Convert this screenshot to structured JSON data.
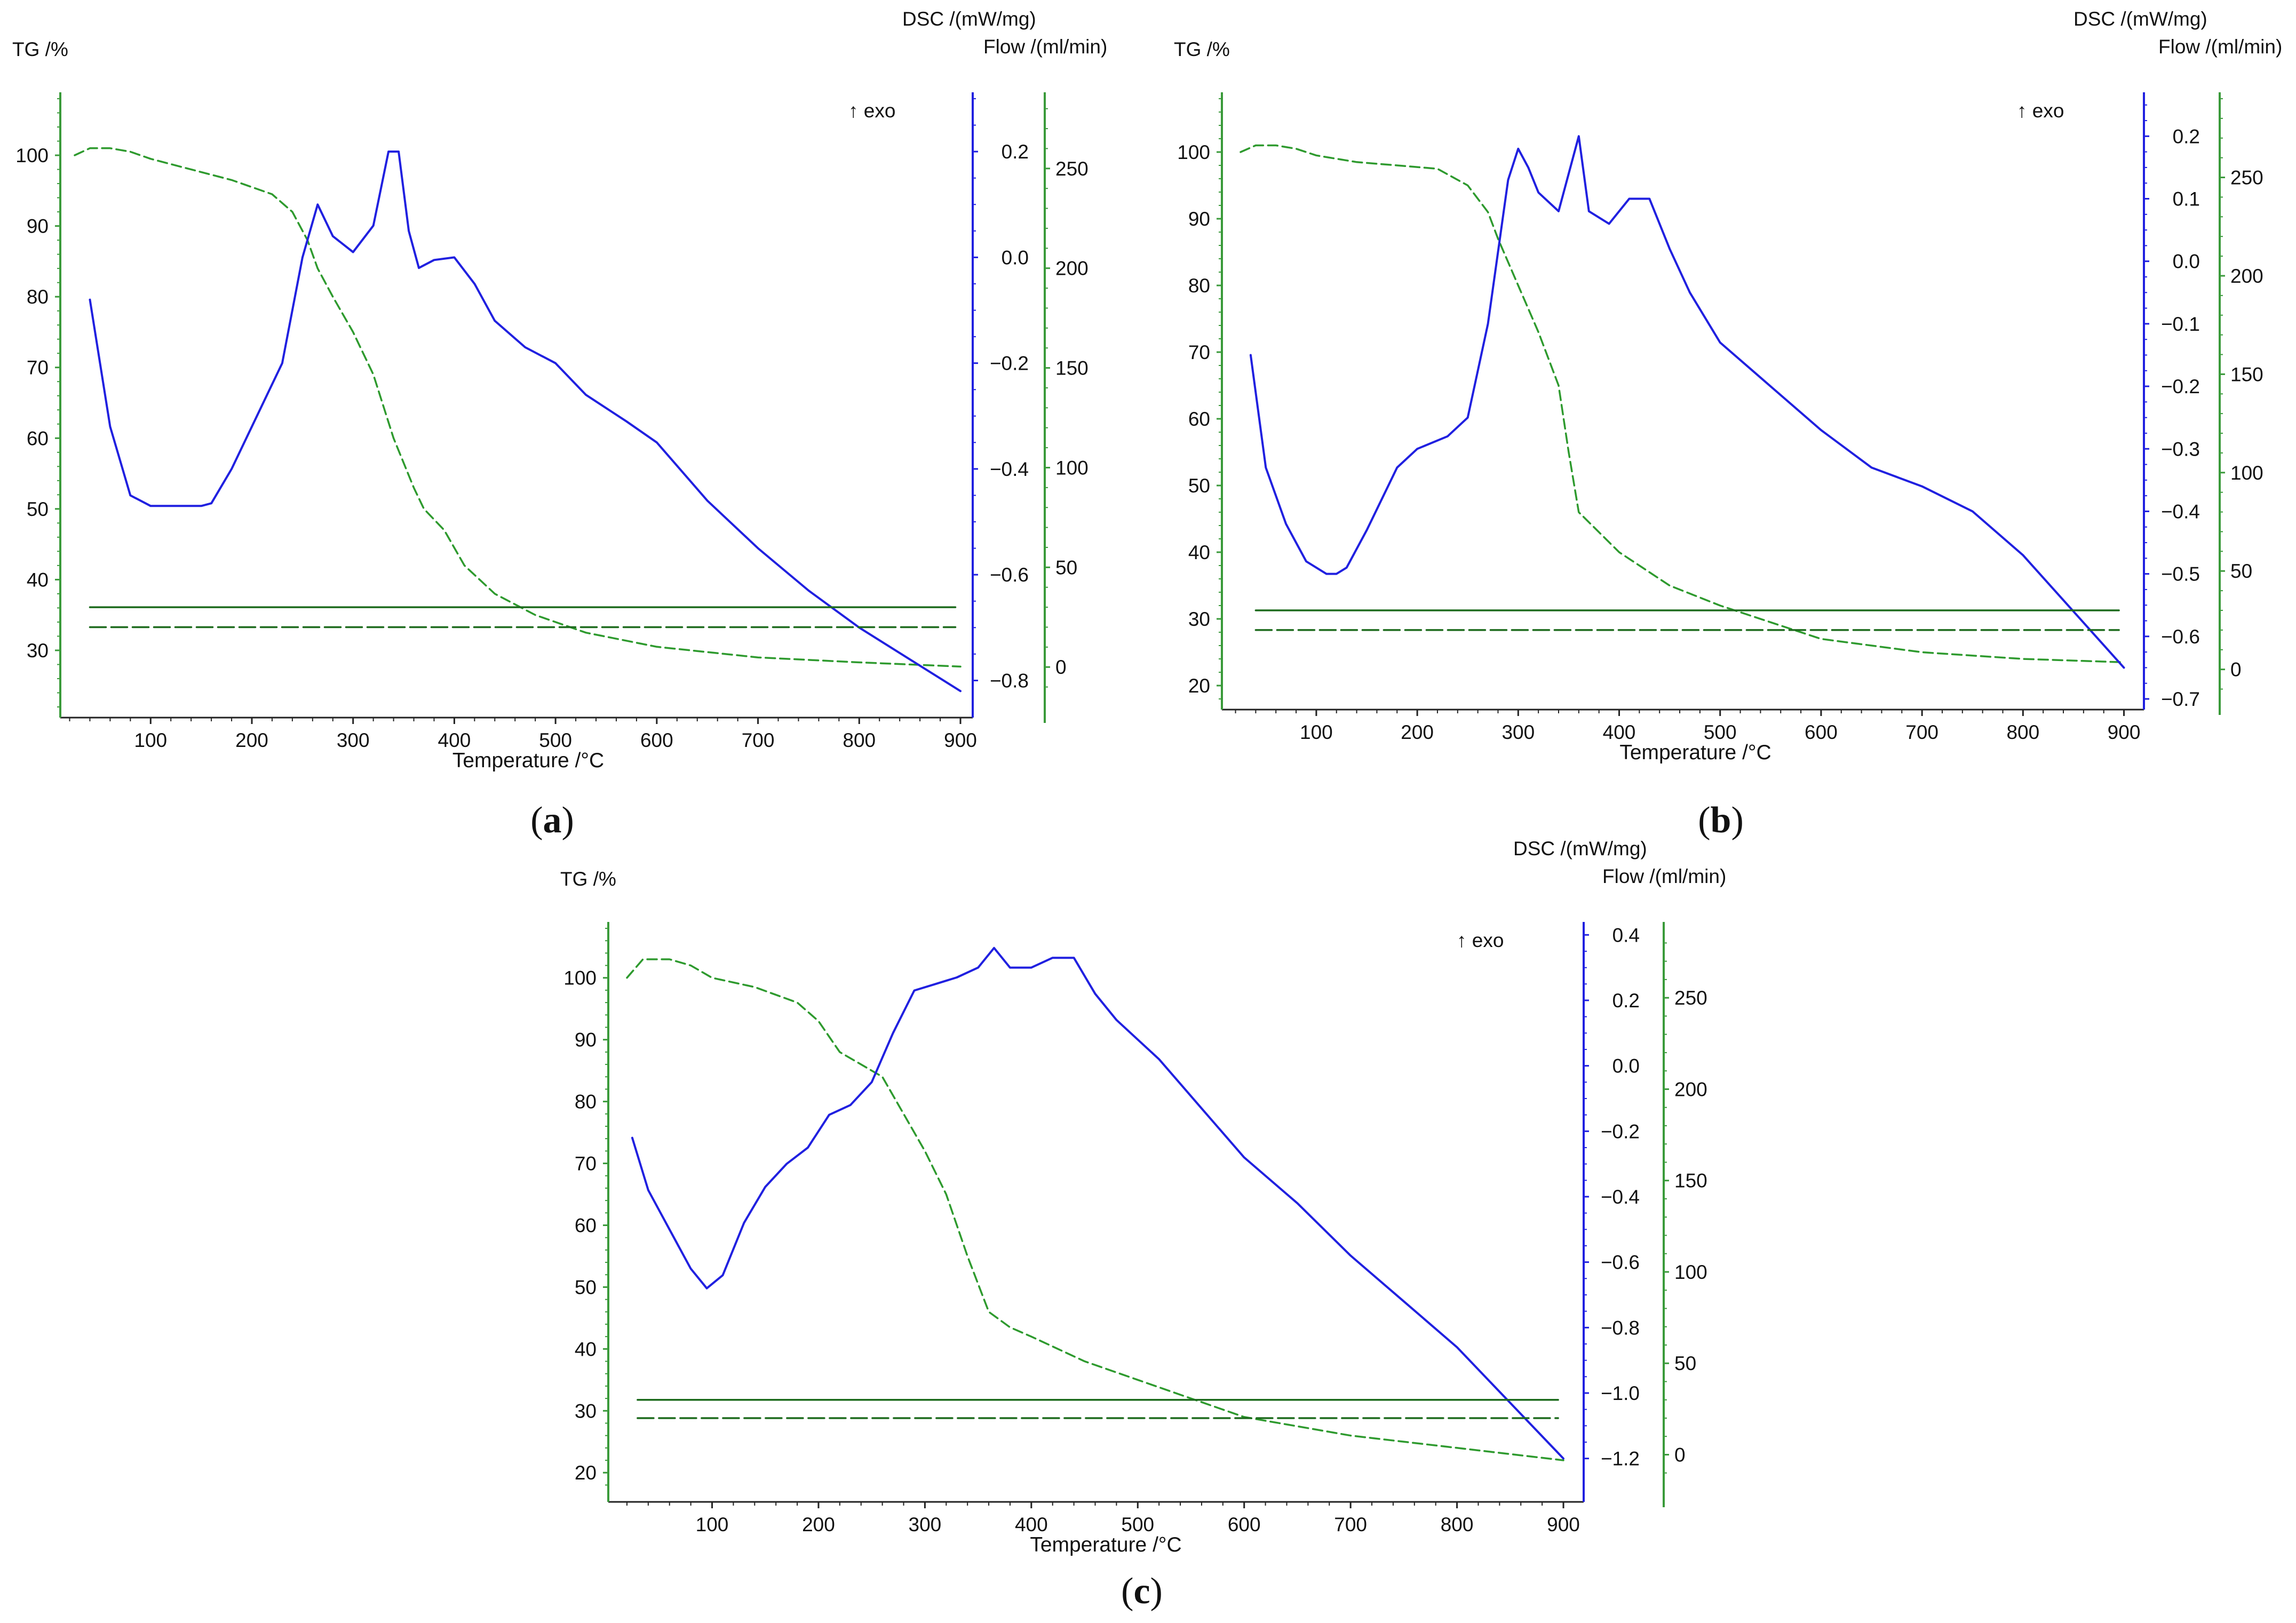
{
  "figure": {
    "colors": {
      "tg": "#2e9a2e",
      "dsc": "#2020e0",
      "flow": "#1d6b1d",
      "axis_tg": "#3a9a3a",
      "axis_dsc": "#2020e0",
      "axis_flow": "#3a9a3a",
      "text": "#111111"
    }
  },
  "chart_data": [
    {
      "id": "a",
      "type": "line",
      "panel_label": {
        "open": "(",
        "letter": "a",
        "close": ")"
      },
      "xlabel": "Temperature /°C",
      "xlim": [
        25,
        900
      ],
      "xticks": [
        100,
        200,
        300,
        400,
        500,
        600,
        700,
        800,
        900
      ],
      "tg_axis": {
        "label": "TG /%",
        "ylim": [
          22,
          108
        ],
        "ticks": [
          30,
          40,
          50,
          60,
          70,
          80,
          90,
          100
        ]
      },
      "dsc_axis": {
        "label": "DSC /(mW/mg)",
        "ylim": [
          -0.85,
          0.3
        ],
        "ticks": [
          -0.8,
          -0.6,
          -0.4,
          -0.2,
          0.0,
          0.2
        ],
        "tick_labels": [
          "−0.8",
          "−0.6",
          "−0.4",
          "−0.2",
          "0.0",
          "0.2"
        ]
      },
      "flow_axis": {
        "label": "Flow /(ml/min)",
        "ylim": [
          -20,
          285
        ],
        "ticks": [
          0,
          50,
          100,
          150,
          200,
          250
        ]
      },
      "exo_label": "↑ exo",
      "series": [
        {
          "name": "TG",
          "axis": "tg",
          "style": "dashed",
          "x": [
            25,
            40,
            60,
            80,
            100,
            140,
            180,
            220,
            240,
            255,
            265,
            280,
            300,
            320,
            340,
            360,
            370,
            390,
            410,
            440,
            480,
            530,
            600,
            700,
            800,
            900
          ],
          "y": [
            100,
            101,
            101,
            100.5,
            99.5,
            98,
            96.5,
            94.5,
            92,
            88,
            84,
            80,
            75,
            69,
            60,
            53,
            50,
            47,
            42,
            38,
            35,
            32.5,
            30.5,
            29,
            28.3,
            27.7
          ]
        },
        {
          "name": "DSC",
          "axis": "dsc",
          "style": "solid",
          "x": [
            40,
            60,
            80,
            100,
            120,
            140,
            150,
            160,
            180,
            200,
            230,
            250,
            265,
            280,
            300,
            320,
            335,
            345,
            355,
            365,
            380,
            400,
            420,
            440,
            470,
            500,
            530,
            570,
            600,
            650,
            700,
            750,
            800,
            850,
            900
          ],
          "y": [
            -0.08,
            -0.32,
            -0.45,
            -0.47,
            -0.47,
            -0.47,
            -0.47,
            -0.465,
            -0.4,
            -0.32,
            -0.2,
            0.0,
            0.1,
            0.04,
            0.01,
            0.06,
            0.2,
            0.2,
            0.05,
            -0.02,
            -0.005,
            0.0,
            -0.05,
            -0.12,
            -0.17,
            -0.2,
            -0.26,
            -0.31,
            -0.35,
            -0.46,
            -0.55,
            -0.63,
            -0.7,
            -0.76,
            -0.82
          ]
        },
        {
          "name": "Flow (solid)",
          "axis": "flow",
          "style": "solid",
          "x": [
            40,
            895
          ],
          "y": [
            30,
            30
          ]
        },
        {
          "name": "Flow (dashed)",
          "axis": "flow",
          "style": "dashed",
          "x": [
            40,
            895
          ],
          "y": [
            20,
            20
          ]
        }
      ]
    },
    {
      "id": "b",
      "type": "line",
      "panel_label": {
        "open": "(",
        "letter": "b",
        "close": ")"
      },
      "xlabel": "Temperature /°C",
      "xlim": [
        25,
        905
      ],
      "xticks": [
        100,
        200,
        300,
        400,
        500,
        600,
        700,
        800,
        900
      ],
      "tg_axis": {
        "label": "TG /%",
        "ylim": [
          18,
          108
        ],
        "ticks": [
          20,
          30,
          40,
          50,
          60,
          70,
          80,
          90,
          100
        ]
      },
      "dsc_axis": {
        "label": "DSC /(mW/mg)",
        "ylim": [
          -0.7,
          0.26
        ],
        "ticks": [
          -0.7,
          -0.6,
          -0.5,
          -0.4,
          -0.3,
          -0.2,
          -0.1,
          0.0,
          0.1,
          0.2
        ],
        "tick_labels": [
          "−0.7",
          "−0.6",
          "−0.5",
          "−0.4",
          "−0.3",
          "−0.2",
          "−0.1",
          "0.0",
          "0.1",
          "0.2"
        ]
      },
      "flow_axis": {
        "label": "Flow /(ml/min)",
        "ylim": [
          -15,
          290
        ],
        "ticks": [
          0,
          50,
          100,
          150,
          200,
          250
        ]
      },
      "exo_label": "↑ exo",
      "series": [
        {
          "name": "TG",
          "axis": "tg",
          "style": "dashed",
          "x": [
            25,
            40,
            60,
            80,
            100,
            140,
            180,
            220,
            250,
            270,
            280,
            300,
            320,
            340,
            350,
            360,
            380,
            400,
            450,
            500,
            550,
            600,
            700,
            800,
            900
          ],
          "y": [
            100,
            101,
            101,
            100.5,
            99.5,
            98.5,
            98,
            97.5,
            95,
            91,
            87,
            80,
            73,
            65,
            55,
            46,
            43,
            40,
            35,
            32,
            29.5,
            27,
            25,
            24,
            23.5
          ]
        },
        {
          "name": "DSC",
          "axis": "dsc",
          "style": "solid",
          "x": [
            35,
            50,
            70,
            90,
            110,
            120,
            130,
            150,
            180,
            200,
            230,
            250,
            270,
            290,
            300,
            310,
            320,
            340,
            360,
            370,
            390,
            410,
            430,
            450,
            470,
            500,
            550,
            600,
            650,
            700,
            750,
            800,
            850,
            900
          ],
          "y": [
            -0.15,
            -0.33,
            -0.42,
            -0.48,
            -0.5,
            -0.5,
            -0.49,
            -0.43,
            -0.33,
            -0.3,
            -0.28,
            -0.25,
            -0.1,
            0.13,
            0.18,
            0.15,
            0.11,
            0.08,
            0.2,
            0.08,
            0.06,
            0.1,
            0.1,
            0.02,
            -0.05,
            -0.13,
            -0.2,
            -0.27,
            -0.33,
            -0.36,
            -0.4,
            -0.47,
            -0.56,
            -0.65
          ]
        },
        {
          "name": "Flow (solid)",
          "axis": "flow",
          "style": "solid",
          "x": [
            40,
            895
          ],
          "y": [
            30,
            30
          ]
        },
        {
          "name": "Flow (dashed)",
          "axis": "flow",
          "style": "dashed",
          "x": [
            40,
            895
          ],
          "y": [
            20,
            20
          ]
        }
      ]
    },
    {
      "id": "c",
      "type": "line",
      "panel_label": {
        "open": "(",
        "letter": "c",
        "close": ")"
      },
      "xlabel": "Temperature /°C",
      "xlim": [
        15,
        905
      ],
      "xticks": [
        100,
        200,
        300,
        400,
        500,
        600,
        700,
        800,
        900
      ],
      "tg_axis": {
        "label": "TG /%",
        "ylim": [
          17,
          108
        ],
        "ticks": [
          20,
          30,
          40,
          50,
          60,
          70,
          80,
          90,
          100
        ]
      },
      "dsc_axis": {
        "label": "DSC /(mW/mg)",
        "ylim": [
          -1.3,
          0.42
        ],
        "ticks": [
          -1.2,
          -1.0,
          -0.8,
          -0.6,
          -0.4,
          -0.2,
          0.0,
          0.2,
          0.4
        ],
        "tick_labels": [
          "−1.2",
          "−1.0",
          "−0.8",
          "−0.6",
          "−0.4",
          "−0.2",
          "0.0",
          "0.2",
          "0.4"
        ]
      },
      "flow_axis": {
        "label": "Flow /(ml/min)",
        "ylim": [
          -20,
          288
        ],
        "ticks": [
          0,
          50,
          100,
          150,
          200,
          250
        ]
      },
      "exo_label": "↑ exo",
      "series": [
        {
          "name": "TG",
          "axis": "tg",
          "style": "dashed",
          "x": [
            20,
            35,
            60,
            80,
            100,
            140,
            180,
            200,
            220,
            260,
            280,
            300,
            320,
            340,
            360,
            380,
            400,
            450,
            500,
            550,
            600,
            700,
            800,
            900
          ],
          "y": [
            100,
            103,
            103,
            102,
            100,
            98.5,
            96,
            93,
            88,
            84,
            78,
            72,
            65,
            55,
            46,
            43.5,
            42,
            38,
            35,
            32,
            29,
            26,
            24,
            22
          ]
        },
        {
          "name": "DSC",
          "axis": "dsc",
          "style": "solid",
          "x": [
            25,
            40,
            60,
            80,
            95,
            110,
            130,
            150,
            170,
            190,
            210,
            230,
            250,
            270,
            290,
            310,
            330,
            350,
            365,
            380,
            400,
            420,
            440,
            460,
            480,
            520,
            560,
            600,
            650,
            700,
            750,
            800,
            850,
            900
          ],
          "y": [
            -0.22,
            -0.38,
            -0.5,
            -0.62,
            -0.68,
            -0.64,
            -0.48,
            -0.37,
            -0.3,
            -0.25,
            -0.15,
            -0.12,
            -0.05,
            0.1,
            0.23,
            0.25,
            0.27,
            0.3,
            0.36,
            0.3,
            0.3,
            0.33,
            0.33,
            0.22,
            0.14,
            0.02,
            -0.13,
            -0.28,
            -0.42,
            -0.58,
            -0.72,
            -0.86,
            -1.03,
            -1.2
          ]
        },
        {
          "name": "Flow (solid)",
          "axis": "flow",
          "style": "solid",
          "x": [
            30,
            895
          ],
          "y": [
            30,
            30
          ]
        },
        {
          "name": "Flow (dashed)",
          "axis": "flow",
          "style": "dashed",
          "x": [
            30,
            895
          ],
          "y": [
            20,
            20
          ]
        }
      ]
    }
  ]
}
